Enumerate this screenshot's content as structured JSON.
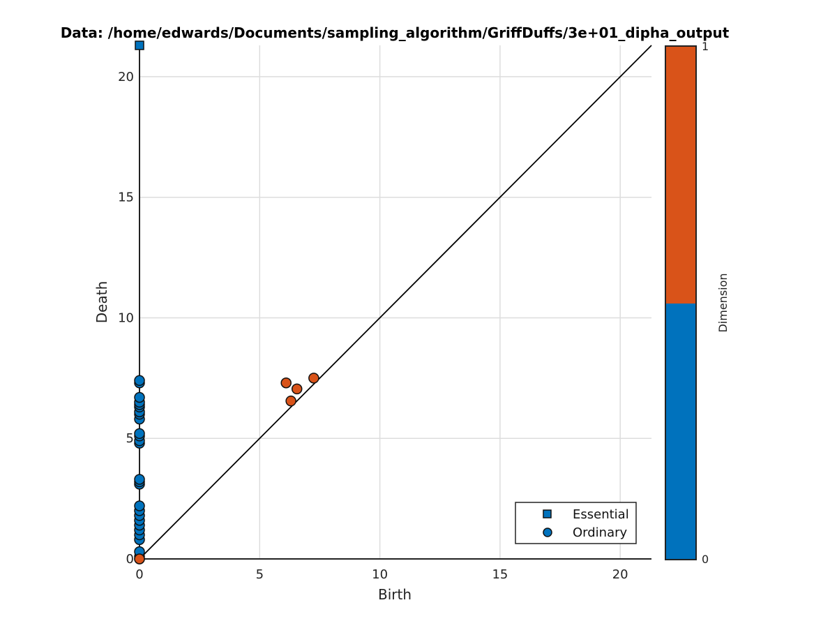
{
  "chart_data": {
    "type": "scatter",
    "title": "Data: /home/edwards/Documents/sampling_algorithm/GriffDuffs/3e+01_dipha_output",
    "xlabel": "Birth",
    "ylabel": "Death",
    "xlim": [
      0,
      21.3
    ],
    "ylim": [
      0,
      21.3
    ],
    "xticks": [
      0,
      5,
      10,
      15,
      20
    ],
    "yticks": [
      0,
      5,
      10,
      15,
      20
    ],
    "grid": true,
    "diagonal": true,
    "legend_position": "bottom-right",
    "legend": [
      {
        "label": "Essential",
        "marker": "square"
      },
      {
        "label": "Ordinary",
        "marker": "circle"
      }
    ],
    "colorbar": {
      "label": "Dimension",
      "min_label": "0",
      "max_label": "1",
      "colors": [
        "#0072bd",
        "#d95319"
      ]
    },
    "series": [
      {
        "marker": "square",
        "dimension": 0,
        "points": [
          [
            0,
            21.3
          ]
        ]
      },
      {
        "marker": "circle",
        "dimension": 0,
        "points": [
          [
            0,
            0
          ],
          [
            0,
            0.1
          ],
          [
            0,
            0.3
          ],
          [
            0,
            0.8
          ],
          [
            0,
            1.0
          ],
          [
            0,
            1.2
          ],
          [
            0,
            1.4
          ],
          [
            0,
            1.6
          ],
          [
            0,
            1.8
          ],
          [
            0,
            2.0
          ],
          [
            0,
            2.2
          ],
          [
            0,
            3.1
          ],
          [
            0,
            3.2
          ],
          [
            0,
            3.3
          ],
          [
            0,
            4.8
          ],
          [
            0,
            4.9
          ],
          [
            0,
            5.1
          ],
          [
            0,
            5.2
          ],
          [
            0,
            5.8
          ],
          [
            0,
            6.0
          ],
          [
            0,
            6.1
          ],
          [
            0,
            6.3
          ],
          [
            0,
            6.4
          ],
          [
            0,
            6.5
          ],
          [
            0,
            6.7
          ],
          [
            0,
            7.3
          ],
          [
            0,
            7.4
          ]
        ]
      },
      {
        "marker": "circle",
        "dimension": 1,
        "points": [
          [
            0,
            0
          ],
          [
            6.1,
            7.3
          ],
          [
            6.55,
            7.05
          ],
          [
            7.25,
            7.5
          ],
          [
            6.3,
            6.55
          ]
        ]
      }
    ]
  }
}
